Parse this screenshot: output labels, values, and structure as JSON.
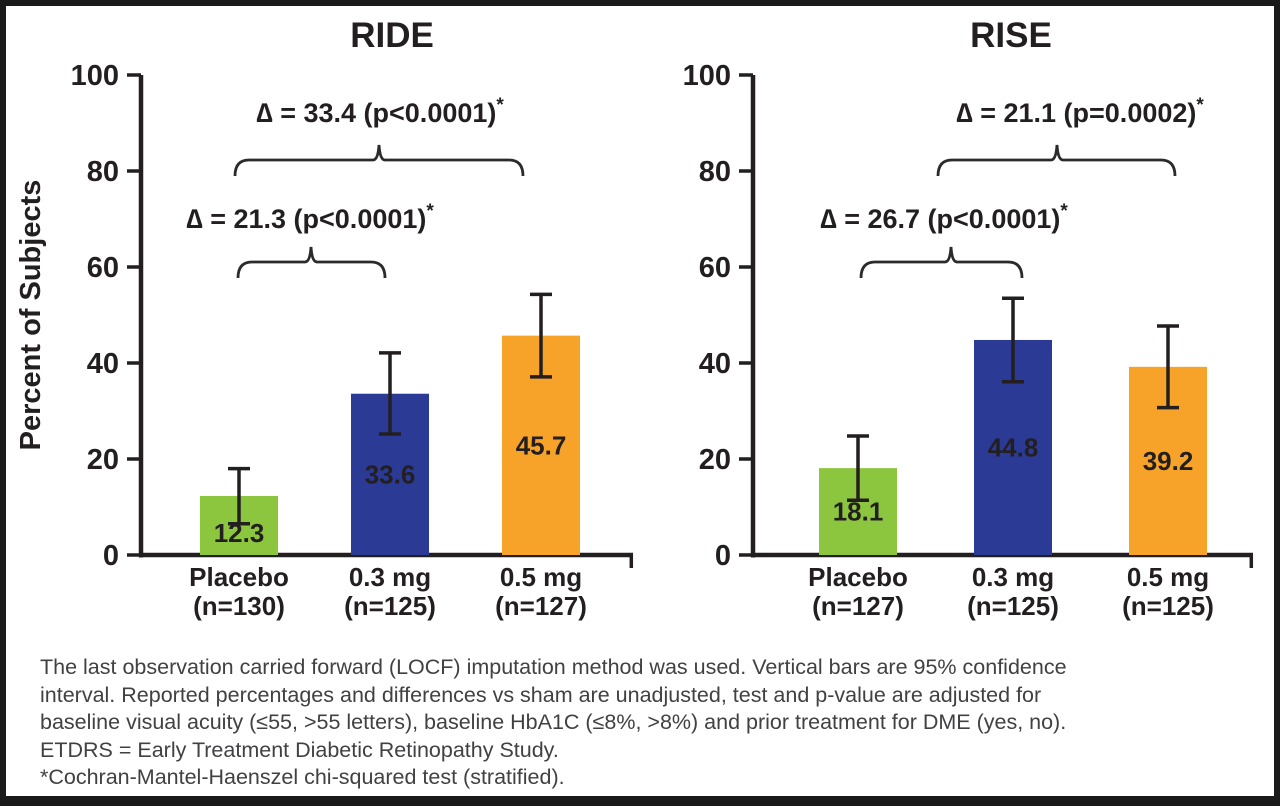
{
  "chart_data": [
    {
      "type": "bar",
      "title": "RIDE",
      "xlabel": "",
      "ylabel": "Percent of Subjects",
      "ylim": [
        0,
        100
      ],
      "yticks": [
        0,
        20,
        40,
        60,
        80,
        100
      ],
      "grid": "off",
      "legend": "none",
      "categories": [
        [
          "Placebo",
          "(n=130)"
        ],
        [
          "0.3 mg",
          "(n=125)"
        ],
        [
          "0.5 mg",
          "(n=127)"
        ]
      ],
      "values": [
        12.3,
        33.6,
        45.7
      ],
      "values_display": [
        "12.3",
        "33.6",
        "45.7"
      ],
      "ci_low": [
        6.5,
        25.2,
        37.1
      ],
      "ci_high": [
        18.0,
        42.1,
        54.3
      ],
      "bar_colors": [
        "#8CC63E",
        "#2B3A94",
        "#F7A229"
      ],
      "value_label_colors": [
        "#231F20",
        "#FFFFFF",
        "#231F20"
      ],
      "annotations": [
        {
          "text": "∆ = 21.3 (p<0.0001)",
          "star": "*",
          "compares": [
            0,
            1
          ]
        },
        {
          "text": "∆ = 33.4 (p<0.0001)",
          "star": "*",
          "compares": [
            0,
            2
          ]
        }
      ]
    },
    {
      "type": "bar",
      "title": "RISE",
      "xlabel": "",
      "ylabel": "",
      "ylim": [
        0,
        100
      ],
      "yticks": [
        0,
        20,
        40,
        60,
        80,
        100
      ],
      "grid": "off",
      "legend": "none",
      "categories": [
        [
          "Placebo",
          "(n=127)"
        ],
        [
          "0.3 mg",
          "(n=125)"
        ],
        [
          "0.5 mg",
          "(n=125)"
        ]
      ],
      "values": [
        18.1,
        44.8,
        39.2
      ],
      "values_display": [
        "18.1",
        "44.8",
        "39.2"
      ],
      "ci_low": [
        11.4,
        36.1,
        30.7
      ],
      "ci_high": [
        24.8,
        53.5,
        47.7
      ],
      "bar_colors": [
        "#8CC63E",
        "#2B3A94",
        "#F7A229"
      ],
      "value_label_colors": [
        "#231F20",
        "#FFFFFF",
        "#231F20"
      ],
      "annotations": [
        {
          "text": "∆ = 26.7 (p<0.0001)",
          "star": "*",
          "compares": [
            0,
            1
          ]
        },
        {
          "text": "∆ = 21.1 (p=0.0002)",
          "star": "*",
          "compares": [
            0,
            2
          ]
        }
      ]
    }
  ],
  "footnote": {
    "lines": [
      "The last observation carried forward (LOCF) imputation method was used. Vertical bars are 95% confidence",
      "interval. Reported percentages and differences vs sham are unadjusted, test and p-value are adjusted for",
      "baseline visual acuity (≤55, >55 letters), baseline HbA1C (≤8%, >8%) and prior treatment for DME (yes, no).",
      "ETDRS = Early Treatment Diabetic Retinopathy Study.",
      "*Cochran-Mantel-Haenszel chi-squared test (stratified)."
    ]
  },
  "colors": {
    "placebo_green": "#8CC63E",
    "dose03_blue": "#2B3A94",
    "dose05_orange": "#F7A229",
    "ink": "#231F20",
    "footnote_text": "#414042",
    "frame_border": "#1a1a1a"
  }
}
